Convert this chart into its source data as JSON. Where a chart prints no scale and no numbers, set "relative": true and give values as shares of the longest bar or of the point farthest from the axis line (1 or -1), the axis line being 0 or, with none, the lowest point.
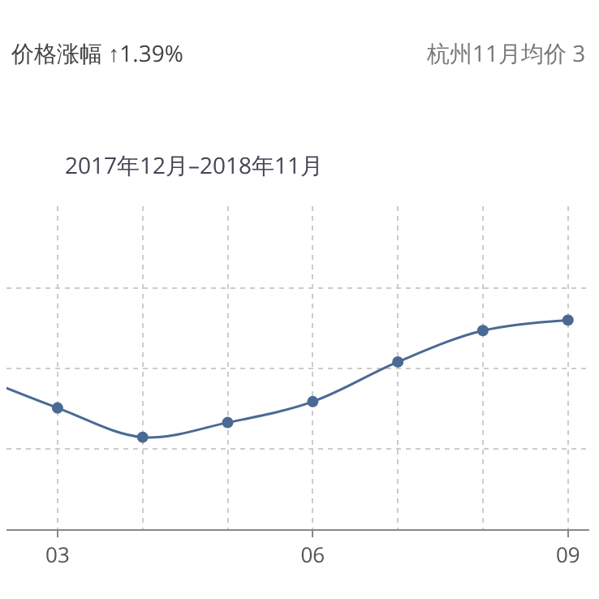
{
  "chart_data": {
    "type": "line",
    "relative": true,
    "title": "2017年12月–2018年11月",
    "annotations": [
      "价格涨幅 ↑1.39%",
      "杭州11月均价 3"
    ],
    "categories": [
      null,
      "03",
      null,
      null,
      "06",
      null,
      null,
      "09"
    ],
    "series": [
      {
        "color": "#4a6a94",
        "values": [
          0.74,
          0.58,
          0.44,
          0.51,
          0.61,
          0.8,
          0.95,
          1.0
        ]
      }
    ],
    "grid": true,
    "marker": "circle",
    "line_style": "solid"
  }
}
